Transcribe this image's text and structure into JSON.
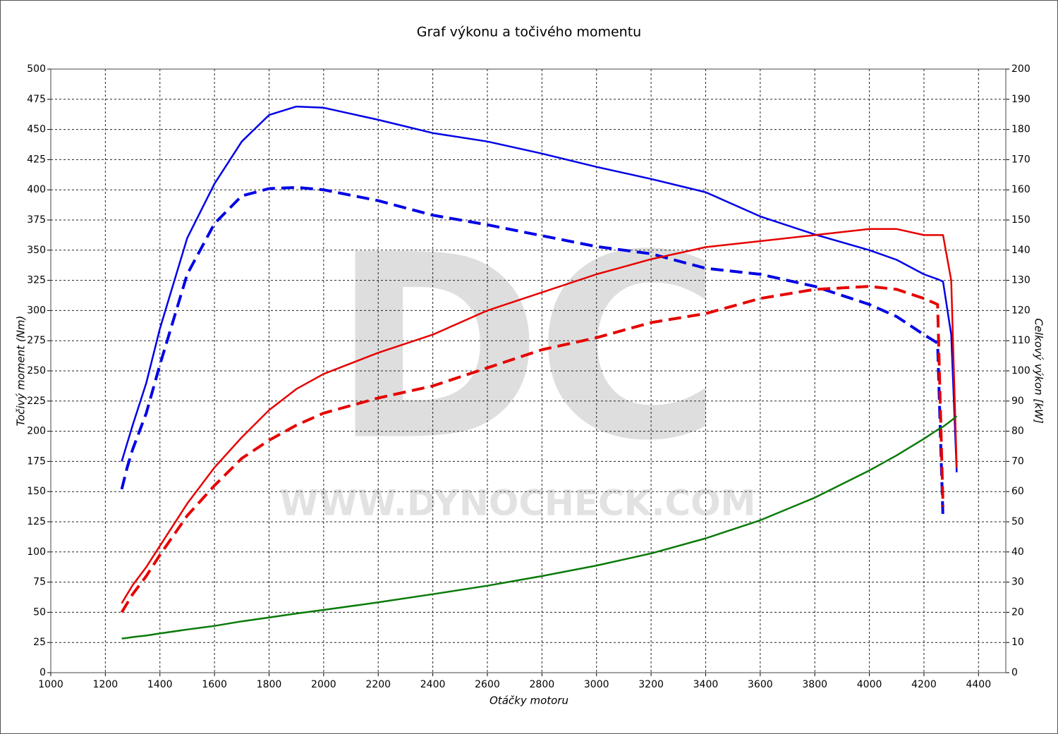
{
  "chart_data": {
    "type": "line",
    "title": "Graf výkonu a točivého momentu",
    "x_label": "Otáčky motoru",
    "y_label": "Točivý moment (Nm)",
    "y2_label": "Celkový výkon [kW]",
    "watermark": [
      "DC",
      "WWW.DYNOCHECK.COM"
    ],
    "grid": true,
    "xlim": [
      1000,
      4500
    ],
    "xticks": [
      1000,
      1200,
      1400,
      1600,
      1800,
      2000,
      2200,
      2400,
      2600,
      2800,
      3000,
      3200,
      3400,
      3600,
      3800,
      4000,
      4200,
      4400
    ],
    "ylim": [
      0,
      500
    ],
    "yticks": [
      0,
      25,
      50,
      75,
      100,
      125,
      150,
      175,
      200,
      225,
      250,
      275,
      300,
      325,
      350,
      375,
      400,
      425,
      450,
      475,
      500
    ],
    "y2lim": [
      0,
      200
    ],
    "y2ticks": [
      0,
      10,
      20,
      30,
      40,
      50,
      60,
      70,
      80,
      90,
      100,
      110,
      120,
      130,
      140,
      150,
      160,
      170,
      180,
      190,
      200
    ],
    "x": [
      1260,
      1280,
      1300,
      1350,
      1400,
      1500,
      1600,
      1700,
      1800,
      1900,
      2000,
      2200,
      2400,
      2600,
      2800,
      3000,
      3200,
      3400,
      3600,
      3800,
      4000,
      4100,
      4200,
      4250,
      4270,
      4300,
      4320
    ],
    "series": [
      {
        "color": "#0000e6",
        "dashed": false,
        "values": [
          175,
          190,
          205,
          240,
          285,
          360,
          405,
          440,
          462,
          469,
          468,
          458,
          447,
          440,
          430,
          419,
          409,
          398,
          378,
          363,
          350,
          342,
          330,
          326,
          324,
          280,
          166
        ]
      },
      {
        "color": "#0000e6",
        "dashed": true,
        "values": [
          152,
          170,
          185,
          215,
          255,
          330,
          372,
          395,
          401,
          402,
          400,
          391,
          379,
          371,
          362,
          353,
          347,
          335,
          330,
          320,
          305,
          295,
          280,
          273,
          127,
          null,
          null
        ]
      },
      {
        "color": "#e60000",
        "dashed": false,
        "axis": "y2",
        "values": [
          23,
          26,
          29,
          35,
          42,
          56,
          68,
          78,
          87,
          94,
          99,
          106,
          112,
          120,
          126,
          132,
          137,
          141,
          143,
          145,
          147,
          147,
          145,
          145,
          145,
          130,
          68
        ]
      },
      {
        "color": "#e60000",
        "dashed": true,
        "axis": "y2",
        "values": [
          20,
          23,
          26,
          32,
          39,
          52,
          62,
          71,
          77,
          82,
          86,
          91,
          95,
          101,
          107,
          111,
          116,
          119,
          124,
          127,
          128,
          127,
          124,
          122,
          55,
          null,
          null
        ]
      },
      {
        "color": "#0a7a0a",
        "dashed": false,
        "axis": "y2",
        "values": [
          11.3,
          11.5,
          11.8,
          12.3,
          13,
          14.3,
          15.5,
          17,
          18.3,
          19.6,
          20.8,
          23.3,
          26,
          28.8,
          32,
          35.5,
          39.5,
          44.5,
          50.5,
          58,
          67,
          72,
          77.5,
          80.5,
          81.5,
          83.5,
          85
        ]
      }
    ]
  }
}
